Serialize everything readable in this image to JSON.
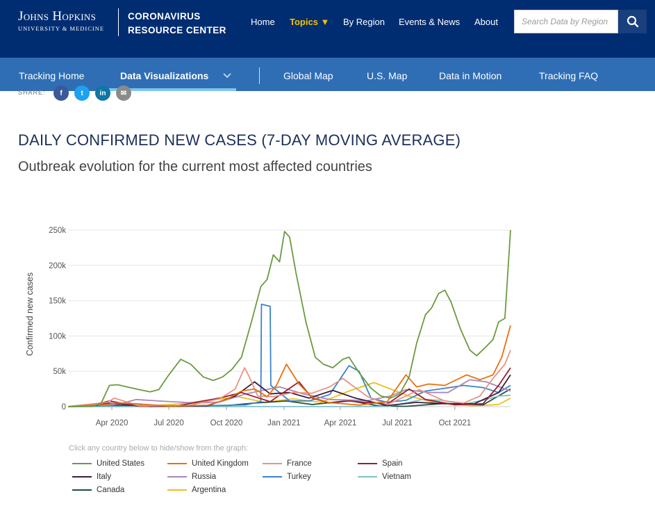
{
  "header": {
    "logo_line1": "Johns Hopkins",
    "logo_line2": "UNIVERSITY & MEDICINE",
    "center_line1": "CORONAVIRUS",
    "center_line2": "RESOURCE CENTER",
    "nav": [
      {
        "label": "Home"
      },
      {
        "label": "Topics ▼",
        "active": true
      },
      {
        "label": "By Region"
      },
      {
        "label": "Events & News"
      },
      {
        "label": "About"
      }
    ],
    "search_placeholder": "Search Data by Region",
    "search_icon": "search-icon"
  },
  "subnav": {
    "items": [
      {
        "label": "Tracking Home"
      },
      {
        "label": "Data Visualizations",
        "active": true
      },
      {
        "label": "Global Map"
      },
      {
        "label": "U.S. Map"
      },
      {
        "label": "Data in Motion"
      },
      {
        "label": "Tracking FAQ"
      }
    ]
  },
  "share": {
    "label": "SHARE:",
    "icons": [
      {
        "name": "facebook-icon",
        "glyph": "f",
        "color": "#3b5998"
      },
      {
        "name": "twitter-icon",
        "glyph": "t",
        "color": "#1da1f2"
      },
      {
        "name": "linkedin-icon",
        "glyph": "in",
        "color": "#0e76a8"
      },
      {
        "name": "email-icon",
        "glyph": "✉",
        "color": "#8a8a8a"
      }
    ]
  },
  "page": {
    "title": "DAILY CONFIRMED NEW CASES (7-DAY MOVING AVERAGE)",
    "subtitle": "Outbreak evolution for the current most affected countries"
  },
  "legend": {
    "hint": "Click any country below to hide/show from the graph:"
  },
  "chart_data": {
    "type": "line",
    "title": "",
    "xlabel": "",
    "ylabel": "Confirmed new cases",
    "xlim": [
      "2020-01-22",
      "2021-12-29"
    ],
    "ylim": [
      0,
      250000
    ],
    "yticks": [
      0,
      50000,
      100000,
      150000,
      200000,
      250000
    ],
    "ytick_labels": [
      "0",
      "50k",
      "100k",
      "150k",
      "200k",
      "250k"
    ],
    "xticks": [
      "2020-04-01",
      "2020-07-01",
      "2020-10-01",
      "2021-01-01",
      "2021-04-01",
      "2021-07-01",
      "2021-10-01"
    ],
    "xtick_labels": [
      "Apr 2020",
      "Jul 2020",
      "Oct 2020",
      "Jan 2021",
      "Apr 2021",
      "Jul 2021",
      "Oct 2021"
    ],
    "grid": true,
    "legend_position": "bottom",
    "series": [
      {
        "name": "United States",
        "color": "#6b9a3f",
        "x": [
          "2020-01-22",
          "2020-03-01",
          "2020-03-15",
          "2020-03-28",
          "2020-04-10",
          "2020-04-25",
          "2020-05-15",
          "2020-06-01",
          "2020-06-15",
          "2020-07-01",
          "2020-07-20",
          "2020-08-05",
          "2020-08-25",
          "2020-09-10",
          "2020-09-25",
          "2020-10-10",
          "2020-10-25",
          "2020-11-10",
          "2020-11-25",
          "2020-12-05",
          "2020-12-15",
          "2020-12-25",
          "2021-01-02",
          "2021-01-10",
          "2021-01-20",
          "2021-02-05",
          "2021-02-20",
          "2021-03-05",
          "2021-03-20",
          "2021-04-05",
          "2021-04-15",
          "2021-05-01",
          "2021-05-20",
          "2021-06-05",
          "2021-06-20",
          "2021-07-05",
          "2021-07-20",
          "2021-08-01",
          "2021-08-15",
          "2021-08-25",
          "2021-09-05",
          "2021-09-15",
          "2021-09-25",
          "2021-10-10",
          "2021-10-25",
          "2021-11-05",
          "2021-11-20",
          "2021-12-01",
          "2021-12-10",
          "2021-12-20",
          "2021-12-29"
        ],
        "y": [
          0,
          500,
          5000,
          30000,
          31000,
          28000,
          24000,
          21000,
          24000,
          45000,
          67000,
          60000,
          42000,
          37000,
          42000,
          53000,
          70000,
          120000,
          170000,
          180000,
          215000,
          205000,
          248000,
          240000,
          190000,
          120000,
          70000,
          60000,
          55000,
          67000,
          70000,
          48000,
          26000,
          15000,
          12000,
          18000,
          42000,
          90000,
          130000,
          140000,
          160000,
          165000,
          148000,
          110000,
          80000,
          72000,
          85000,
          95000,
          120000,
          125000,
          250000
        ]
      },
      {
        "name": "United Kingdom",
        "color": "#e8700b",
        "x": [
          "2020-01-22",
          "2020-03-20",
          "2020-04-10",
          "2020-05-10",
          "2020-07-01",
          "2020-09-01",
          "2020-10-01",
          "2020-10-25",
          "2020-11-15",
          "2020-12-05",
          "2020-12-20",
          "2021-01-05",
          "2021-01-25",
          "2021-02-15",
          "2021-03-15",
          "2021-05-01",
          "2021-06-15",
          "2021-07-15",
          "2021-08-01",
          "2021-08-20",
          "2021-09-15",
          "2021-10-20",
          "2021-11-10",
          "2021-12-01",
          "2021-12-15",
          "2021-12-29"
        ],
        "y": [
          0,
          3000,
          5000,
          4000,
          700,
          2000,
          10000,
          22000,
          25000,
          14000,
          30000,
          60000,
          32000,
          13000,
          5500,
          2200,
          7000,
          45000,
          28000,
          32000,
          30000,
          45000,
          38000,
          45000,
          70000,
          115000
        ]
      },
      {
        "name": "France",
        "color": "#e59485",
        "x": [
          "2020-01-22",
          "2020-03-25",
          "2020-04-05",
          "2020-05-15",
          "2020-08-01",
          "2020-09-20",
          "2020-10-15",
          "2020-10-30",
          "2020-11-05",
          "2020-11-20",
          "2020-12-15",
          "2021-01-15",
          "2021-02-15",
          "2021-03-15",
          "2021-04-05",
          "2021-04-20",
          "2021-05-15",
          "2021-06-15",
          "2021-07-15",
          "2021-08-05",
          "2021-09-15",
          "2021-10-15",
          "2021-11-10",
          "2021-12-01",
          "2021-12-20",
          "2021-12-29"
        ],
        "y": [
          0,
          6000,
          12000,
          1000,
          1500,
          11000,
          25000,
          55000,
          45000,
          15000,
          14000,
          20000,
          19000,
          28000,
          40000,
          30000,
          14000,
          3000,
          15000,
          24000,
          8000,
          5000,
          15000,
          40000,
          60000,
          80000
        ]
      },
      {
        "name": "Spain",
        "color": "#9b1c31",
        "x": [
          "2020-01-22",
          "2020-03-15",
          "2020-03-28",
          "2020-04-15",
          "2020-05-15",
          "2020-07-15",
          "2020-08-25",
          "2020-09-20",
          "2020-10-25",
          "2020-11-15",
          "2020-12-10",
          "2021-01-25",
          "2021-02-15",
          "2021-03-15",
          "2021-04-15",
          "2021-06-15",
          "2021-07-20",
          "2021-08-15",
          "2021-10-01",
          "2021-11-15",
          "2021-12-10",
          "2021-12-29"
        ],
        "y": [
          0,
          5000,
          8000,
          5000,
          500,
          1000,
          8000,
          12000,
          20000,
          14000,
          7000,
          35000,
          12000,
          5000,
          8000,
          3500,
          25000,
          10000,
          2500,
          4000,
          30000,
          55000
        ]
      },
      {
        "name": "Italy",
        "color": "#3b1e3f",
        "x": [
          "2020-01-22",
          "2020-03-10",
          "2020-03-25",
          "2020-04-15",
          "2020-06-01",
          "2020-09-01",
          "2020-10-15",
          "2020-11-15",
          "2020-12-10",
          "2021-01-10",
          "2021-02-10",
          "2021-03-20",
          "2021-04-25",
          "2021-06-15",
          "2021-08-01",
          "2021-09-15",
          "2021-11-01",
          "2021-12-10",
          "2021-12-29"
        ],
        "y": [
          0,
          2000,
          5000,
          3500,
          300,
          1200,
          15000,
          35000,
          18000,
          20000,
          12000,
          23000,
          12000,
          1500,
          6000,
          4000,
          4000,
          20000,
          45000
        ]
      },
      {
        "name": "Russia",
        "color": "#a988b7",
        "x": [
          "2020-01-22",
          "2020-04-10",
          "2020-05-10",
          "2020-06-15",
          "2020-08-15",
          "2020-09-20",
          "2020-11-01",
          "2020-12-25",
          "2021-02-01",
          "2021-03-15",
          "2021-05-15",
          "2021-06-20",
          "2021-07-15",
          "2021-08-20",
          "2021-09-20",
          "2021-10-25",
          "2021-11-20",
          "2021-12-29"
        ],
        "y": [
          0,
          3000,
          10000,
          8000,
          5000,
          6500,
          18000,
          28000,
          18000,
          10000,
          8500,
          15000,
          24000,
          20000,
          20000,
          38000,
          35000,
          22000
        ]
      },
      {
        "name": "Turkey",
        "color": "#3a83c7",
        "x": [
          "2020-01-22",
          "2020-04-01",
          "2020-04-15",
          "2020-05-15",
          "2020-07-15",
          "2020-09-15",
          "2020-11-01",
          "2020-11-25",
          "2020-11-26",
          "2020-12-10",
          "2020-12-11",
          "2021-01-10",
          "2021-02-10",
          "2021-03-15",
          "2021-04-15",
          "2021-05-01",
          "2021-05-20",
          "2021-06-15",
          "2021-07-15",
          "2021-08-15",
          "2021-09-15",
          "2021-10-15",
          "2021-11-15",
          "2021-12-10",
          "2021-12-29"
        ],
        "y": [
          0,
          2000,
          4500,
          1500,
          1000,
          1600,
          2500,
          7000,
          145000,
          142000,
          30000,
          8000,
          8000,
          17000,
          58000,
          50000,
          12000,
          6000,
          9000,
          22000,
          26000,
          30000,
          27000,
          20000,
          30000
        ]
      },
      {
        "name": "Vietnam",
        "color": "#7fc1c9",
        "x": [
          "2020-01-22",
          "2021-04-15",
          "2021-06-15",
          "2021-07-15",
          "2021-08-10",
          "2021-09-10",
          "2021-10-15",
          "2021-11-15",
          "2021-12-10",
          "2021-12-29"
        ],
        "y": [
          0,
          0,
          200,
          5000,
          10000,
          9000,
          3500,
          9000,
          15000,
          16000
        ]
      },
      {
        "name": "Canada",
        "color": "#1f4e3d",
        "x": [
          "2020-01-22",
          "2020-04-10",
          "2020-05-10",
          "2020-07-15",
          "2020-10-01",
          "2020-11-15",
          "2021-01-05",
          "2021-02-15",
          "2021-04-15",
          "2021-06-01",
          "2021-07-15",
          "2021-09-15",
          "2021-11-15",
          "2021-12-29"
        ],
        "y": [
          0,
          1500,
          1200,
          300,
          1500,
          5000,
          8000,
          3000,
          8500,
          1000,
          400,
          4500,
          2500,
          25000
        ]
      },
      {
        "name": "Argentina",
        "color": "#e8c11c",
        "x": [
          "2020-01-22",
          "2020-05-15",
          "2020-07-15",
          "2020-08-25",
          "2020-10-20",
          "2020-12-01",
          "2021-01-15",
          "2021-03-01",
          "2021-04-15",
          "2021-05-25",
          "2021-06-20",
          "2021-07-20",
          "2021-09-01",
          "2021-11-01",
          "2021-12-10",
          "2021-12-29"
        ],
        "y": [
          0,
          300,
          3500,
          8000,
          14000,
          6000,
          11000,
          6000,
          22000,
          34000,
          25000,
          15000,
          5000,
          1200,
          3000,
          12000
        ]
      }
    ]
  }
}
